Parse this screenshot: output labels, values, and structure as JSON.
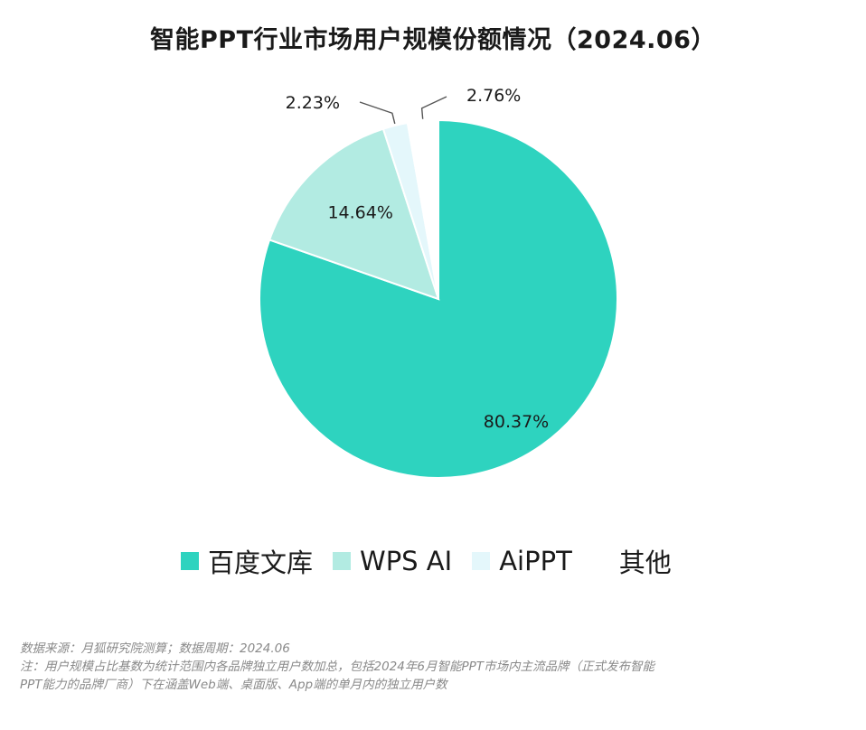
{
  "chart_data": {
    "type": "pie",
    "title": "智能PPT行业市场用户规模份额情况（2024.06）",
    "series": [
      {
        "name": "百度文库",
        "value": 80.37,
        "label": "80.37%",
        "color": "#2ed3bf"
      },
      {
        "name": "WPS AI",
        "value": 14.64,
        "label": "14.64%",
        "color": "#b2ebe2"
      },
      {
        "name": "AiPPT",
        "value": 2.23,
        "label": "2.23%",
        "color": "#e4f7fb"
      },
      {
        "name": "其他",
        "value": 2.76,
        "label": "2.76%",
        "color": "#ffffff"
      }
    ],
    "legend_position": "bottom"
  },
  "footnote": {
    "line1": "数据来源：月狐研究院测算；数据周期：2024.06",
    "line2": "注：用户规模占比基数为统计范围内各品牌独立用户数加总，包括2024年6月智能PPT市场内主流品牌（正式发布智能",
    "line3": "PPT能力的品牌厂商）下在涵盖Web端、桌面版、App端的单月内的独立用户数"
  }
}
